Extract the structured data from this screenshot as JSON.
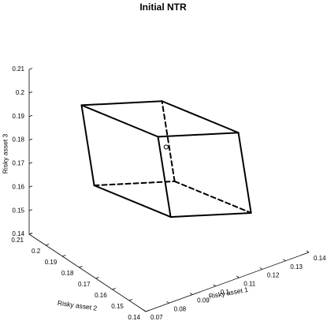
{
  "chart_data": {
    "type": "parallelepiped3d",
    "title": "Initial NTR",
    "xlabel": "Risky asset 1",
    "ylabel": "Risky asset 2",
    "zlabel": "Risky asset 3",
    "x": [
      0.0937,
      0.0937,
      0.1017,
      0.1177,
      0.1017,
      0.1177,
      0.1257,
      0.1257
    ],
    "y": [
      0.2041,
      0.2117,
      0.1694,
      0.1894,
      0.177,
      0.197,
      0.1547,
      0.1623
    ],
    "z": [
      0.155,
      0.1855,
      0.155,
      0.155,
      0.1855,
      0.1855,
      0.155,
      0.1855
    ],
    "center": {
      "x": 0.1097,
      "y": 0.1833,
      "z": 0.1753
    },
    "color": "#000000",
    "xlim": [
      0.07,
      0.14
    ],
    "xticks": [
      0.07,
      0.08,
      0.09,
      0.1,
      0.11,
      0.12,
      0.13,
      0.14
    ],
    "ylim": [
      0.14,
      0.21
    ],
    "yticks": [
      0.14,
      0.15,
      0.16,
      0.17,
      0.18,
      0.19,
      0.2,
      0.21
    ],
    "zlim": [
      0.14,
      0.21
    ],
    "zticks": [
      0.14,
      0.15,
      0.16,
      0.17,
      0.18,
      0.19,
      0.2,
      0.21
    ]
  }
}
